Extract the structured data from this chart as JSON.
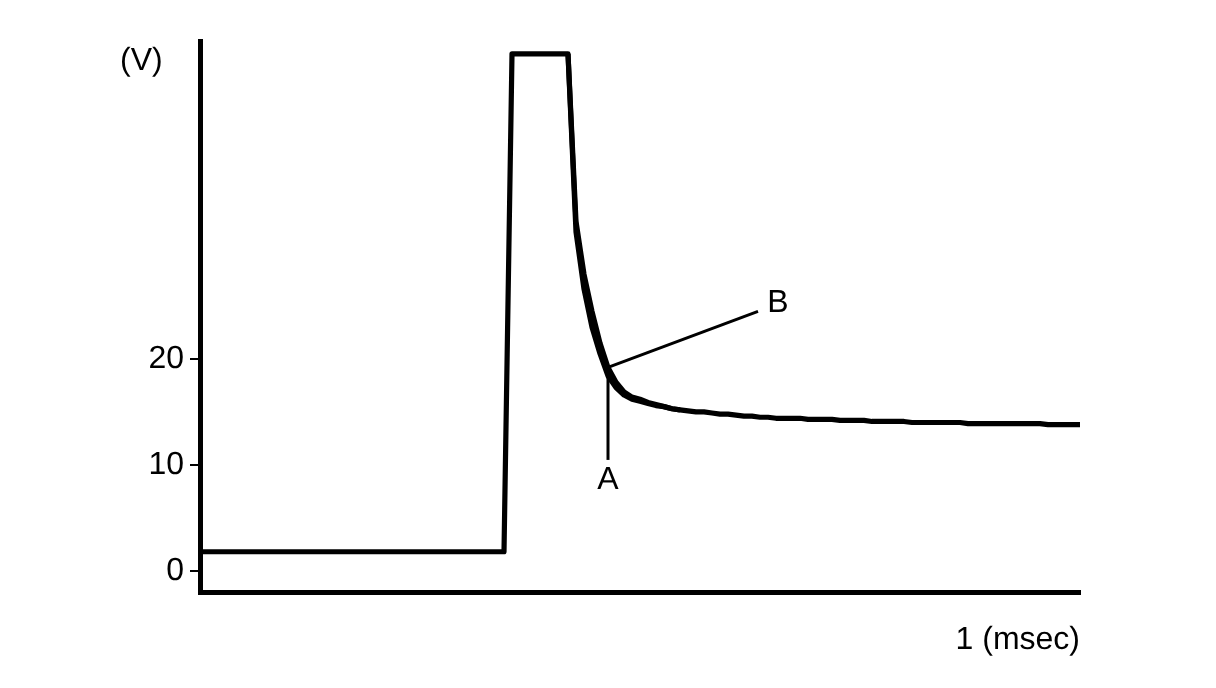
{
  "chart_data": {
    "type": "line",
    "ylabel": "(V)",
    "annotations": [
      "1 (msec)"
    ],
    "categories": [
      null,
      null,
      null,
      null,
      null,
      null,
      null,
      null,
      null,
      null,
      null,
      null,
      null,
      null,
      null,
      null,
      null,
      null,
      null,
      null,
      null,
      null,
      null,
      null,
      null,
      null,
      null,
      null,
      null,
      null,
      null,
      null,
      null,
      null,
      null,
      null,
      null,
      null,
      null,
      null,
      null,
      null,
      null,
      null,
      null,
      null,
      null,
      null,
      null,
      null,
      null,
      null,
      null,
      null,
      null,
      null,
      null,
      null,
      null,
      null,
      null,
      null,
      null,
      null,
      null,
      null,
      null,
      null,
      null,
      null,
      null,
      null,
      null,
      null,
      null,
      null,
      null,
      null,
      null,
      null,
      null,
      null,
      null,
      null,
      null,
      null,
      null,
      null,
      null,
      null,
      null,
      null,
      null,
      null,
      null,
      null,
      null,
      null,
      null,
      null,
      null,
      null,
      null,
      null,
      null,
      null,
      null,
      null,
      null,
      null,
      null
    ],
    "ylim": [
      -2,
      50
    ],
    "yticks": [
      0,
      10,
      20
    ],
    "grid": false,
    "legend": false,
    "marker": "none",
    "line_style": "solid",
    "series": [
      {
        "name": "A",
        "color": "#000000",
        "values": [
          1.8,
          1.8,
          1.8,
          1.8,
          1.8,
          1.8,
          1.8,
          1.8,
          1.8,
          1.8,
          1.8,
          1.8,
          1.8,
          1.8,
          1.8,
          1.8,
          1.8,
          1.8,
          1.8,
          1.8,
          1.8,
          1.8,
          1.8,
          1.8,
          1.8,
          1.8,
          1.8,
          1.8,
          1.8,
          1.8,
          1.8,
          1.8,
          1.8,
          1.8,
          1.8,
          1.8,
          1.8,
          1.8,
          1.8,
          48.8,
          48.8,
          48.8,
          48.8,
          48.8,
          48.8,
          48.8,
          48.8,
          32,
          26.6,
          23,
          20.5,
          18.4,
          17.3,
          16.6,
          16.2,
          16,
          15.8,
          15.6,
          15.5,
          15.3,
          15.2,
          15.1,
          15,
          15,
          14.9,
          14.8,
          14.8,
          14.7,
          14.6,
          14.6,
          14.5,
          14.5,
          14.4,
          14.4,
          14.4,
          14.4,
          14.3,
          14.3,
          14.3,
          14.3,
          14.2,
          14.2,
          14.2,
          14.2,
          14.1,
          14.1,
          14.1,
          14.1,
          14.1,
          14,
          14,
          14,
          14,
          14,
          14,
          14,
          13.9,
          13.9,
          13.9,
          13.9,
          13.9,
          13.9,
          13.9,
          13.9,
          13.9,
          13.9,
          13.8,
          13.8,
          13.8,
          13.8,
          13.8
        ]
      },
      {
        "name": "B",
        "color": "#000000",
        "values": [
          null,
          null,
          null,
          null,
          null,
          null,
          null,
          null,
          null,
          null,
          null,
          null,
          null,
          null,
          null,
          null,
          null,
          null,
          null,
          null,
          null,
          null,
          null,
          null,
          null,
          null,
          null,
          null,
          null,
          null,
          null,
          null,
          null,
          null,
          null,
          null,
          null,
          null,
          null,
          null,
          null,
          null,
          null,
          null,
          null,
          null,
          48.8,
          33,
          28,
          24.5,
          21.5,
          19.2,
          17.8,
          16.9,
          16.4,
          16.2,
          15.9,
          15.7,
          15.5,
          15.3,
          15.2,
          null,
          null,
          null,
          null,
          null,
          null,
          null,
          null,
          null,
          null,
          null,
          null,
          null,
          null,
          null,
          null,
          null,
          null,
          null,
          null,
          null,
          null,
          null,
          null,
          null,
          null,
          null,
          null,
          null,
          null,
          null,
          null,
          null,
          null,
          null,
          null,
          null,
          null,
          null,
          null,
          null,
          null,
          null,
          null,
          null,
          null,
          null,
          null,
          null,
          null
        ]
      }
    ]
  }
}
